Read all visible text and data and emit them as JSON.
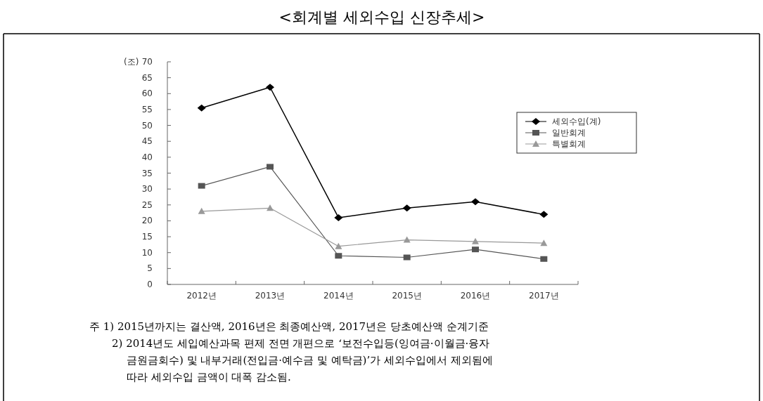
{
  "chart_data": {
    "type": "line",
    "title": "<회계별 세외수입 신장추세>",
    "ylabel": "(조)",
    "categories": [
      "2012년",
      "2013년",
      "2014년",
      "2015년",
      "2016년",
      "2017년"
    ],
    "series": [
      {
        "name": "세외수입(계)",
        "color": "#000000",
        "marker": "diamond",
        "values": [
          55.5,
          62,
          21,
          24,
          26,
          22
        ]
      },
      {
        "name": "일반회계",
        "color": "#555555",
        "marker": "square",
        "values": [
          31,
          37,
          9,
          8.5,
          11,
          8
        ]
      },
      {
        "name": "특별회계",
        "color": "#999999",
        "marker": "triangle",
        "values": [
          23,
          24,
          12,
          14,
          13.5,
          13
        ]
      }
    ],
    "ylim": [
      0,
      70
    ],
    "yticks": [
      0,
      5,
      10,
      15,
      20,
      25,
      30,
      35,
      40,
      45,
      50,
      55,
      60,
      65,
      70
    ],
    "grid": false,
    "legend": "top right",
    "annotations": [
      "주 1) 2015년까지는 결산액, 2016년은 최종예산액, 2017년은 당초예산액 순계기준",
      "2) 2014년도 세입예산과목 편제 전면 개편으로 ‘보전수입등(잉여금·이월금·융자",
      "금원금회수) 및 내부거래(전입금·예수금 및 예탁금)’가 세외수입에서 제외됨에",
      "따라 세외수입 금액이 대폭 감소됨."
    ]
  }
}
